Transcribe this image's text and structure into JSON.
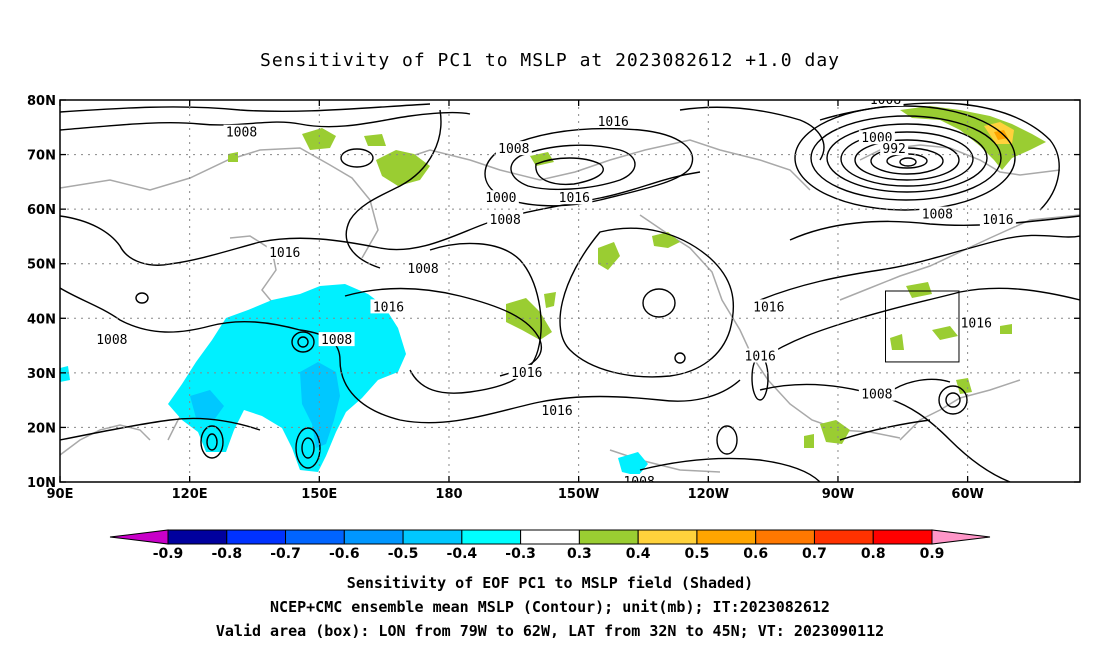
{
  "title": "Sensitivity of PC1 to MSLP at 2023082612 +1.0 day",
  "map": {
    "lon_ticks": [
      {
        "lon": 90,
        "label": "90E"
      },
      {
        "lon": 120,
        "label": "120E"
      },
      {
        "lon": 150,
        "label": "150E"
      },
      {
        "lon": 180,
        "label": "180"
      },
      {
        "lon": 210,
        "label": "150W"
      },
      {
        "lon": 240,
        "label": "120W"
      },
      {
        "lon": 270,
        "label": "90W"
      },
      {
        "lon": 300,
        "label": "60W"
      }
    ],
    "lat_ticks": [
      {
        "lat": 10,
        "label": "10N"
      },
      {
        "lat": 20,
        "label": "20N"
      },
      {
        "lat": 30,
        "label": "30N"
      },
      {
        "lat": 40,
        "label": "40N"
      },
      {
        "lat": 50,
        "label": "50N"
      },
      {
        "lat": 60,
        "label": "60N"
      },
      {
        "lat": 70,
        "label": "70N"
      },
      {
        "lat": 80,
        "label": "80N"
      }
    ],
    "lon_range": [
      90,
      326
    ],
    "lat_range": [
      10,
      80
    ],
    "valid_box": {
      "lon_min": 281,
      "lon_max": 298,
      "lat_min": 32,
      "lat_max": 45
    },
    "contour_labels": [
      {
        "text": "1008",
        "lon": 132,
        "lat": 74
      },
      {
        "text": "1016",
        "lon": 218,
        "lat": 76
      },
      {
        "text": "1008",
        "lon": 195,
        "lat": 71
      },
      {
        "text": "1008",
        "lon": 174,
        "lat": 49
      },
      {
        "text": "1016",
        "lon": 142,
        "lat": 52
      },
      {
        "text": "1016",
        "lon": 166,
        "lat": 42
      },
      {
        "text": "1008",
        "lon": 154,
        "lat": 36
      },
      {
        "text": "1008",
        "lon": 102,
        "lat": 36
      },
      {
        "text": "1000",
        "lon": 192,
        "lat": 62
      },
      {
        "text": "1008",
        "lon": 193,
        "lat": 58
      },
      {
        "text": "1016",
        "lon": 209,
        "lat": 62
      },
      {
        "text": "1016",
        "lon": 198,
        "lat": 30
      },
      {
        "text": "1016",
        "lon": 205,
        "lat": 23
      },
      {
        "text": "1016",
        "lon": 254,
        "lat": 42
      },
      {
        "text": "1016",
        "lon": 252,
        "lat": 33
      },
      {
        "text": "1008",
        "lon": 279,
        "lat": 26
      },
      {
        "text": "1008",
        "lon": 224,
        "lat": 10
      },
      {
        "text": "1008",
        "lon": 281,
        "lat": 80
      },
      {
        "text": "1000",
        "lon": 279,
        "lat": 73
      },
      {
        "text": "992",
        "lon": 283,
        "lat": 71
      },
      {
        "text": "1008",
        "lon": 293,
        "lat": 59
      },
      {
        "text": "1016",
        "lon": 307,
        "lat": 58
      },
      {
        "text": "1016",
        "lon": 302,
        "lat": 39
      }
    ],
    "lows": [
      {
        "lon": 123,
        "lat": 16.5
      },
      {
        "lon": 151,
        "lat": 35
      },
      {
        "lon": 151,
        "lat": 17
      },
      {
        "lon": 180,
        "lat": 20
      },
      {
        "lon": 284,
        "lat": 68
      },
      {
        "lon": 291,
        "lat": 24
      },
      {
        "lon": 240,
        "lat": 18
      }
    ],
    "highs": [
      {
        "lon": 225,
        "lat": 40
      },
      {
        "lon": 174,
        "lat": 70
      }
    ]
  },
  "colorbar": {
    "levels": [
      "-0.9",
      "-0.8",
      "-0.7",
      "-0.6",
      "-0.5",
      "-0.4",
      "-0.3",
      "0.3",
      "0.4",
      "0.5",
      "0.6",
      "0.7",
      "0.8",
      "0.9"
    ],
    "colors": [
      "#00009e",
      "#0032ff",
      "#0064ff",
      "#0096ff",
      "#00c8ff",
      "#00ffff",
      "#ffffff",
      "#9acd32",
      "#ffd23c",
      "#ffa500",
      "#ff7800",
      "#ff3200",
      "#ff0000"
    ],
    "low_end_color": "#c800c8",
    "high_end_color": "#ff96c8"
  },
  "shading_colors": {
    "neg": "#00f0ff",
    "neg_strong": "#00c8ff",
    "pos": "#9acd32",
    "pos_strong": "#ffd23c",
    "pos_orange": "#ffa500"
  },
  "caption": {
    "line1": "Sensitivity of EOF PC1 to MSLP field (Shaded)",
    "line2": "NCEP+CMC ensemble mean MSLP (Contour); unit(mb); IT:2023082612",
    "line3": "Valid area (box): LON from 79W to 62W, LAT from 32N to 45N; VT: 2023090112"
  }
}
